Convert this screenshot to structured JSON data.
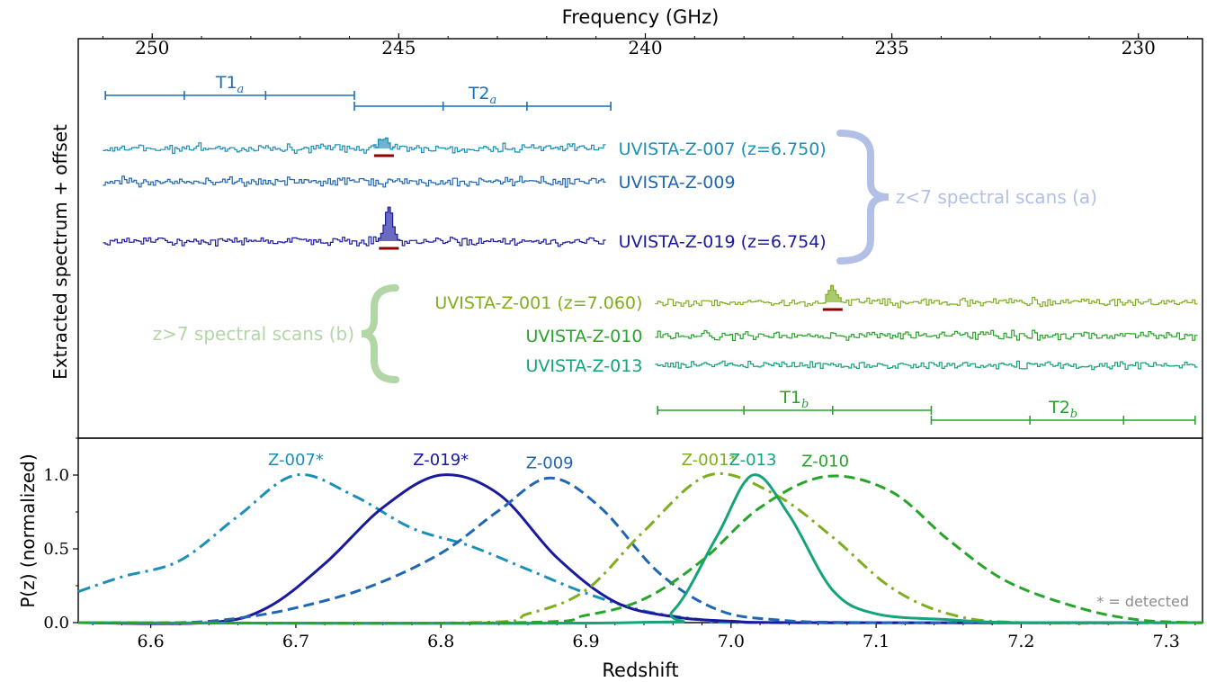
{
  "colors": {
    "z007": "#1c8fb8",
    "z009": "#1f66b3",
    "z019": "#1a1a9e",
    "z001": "#7fae1f",
    "z010": "#27a52a",
    "z013": "#14a37a",
    "brace_a": "#b3c0e6",
    "brace_b": "#b2d6a6",
    "line_marker": "#8b0000",
    "tuning_a": "#1f6fb8",
    "tuning_b": "#27a52a",
    "detected_note": "#8c8c8c"
  },
  "chart_data": [
    {
      "type": "line",
      "title": "",
      "top_axis_label": "Frequency (GHz)",
      "top_ticks": [
        "250",
        "245",
        "240",
        "235",
        "230"
      ],
      "ylabel": "Extracted spectrum + offset",
      "frequency_range_ghz": [
        251.5,
        228.7
      ],
      "tunings_a": {
        "T1": {
          "label_main": "T1",
          "label_sub": "a",
          "range_ghz": [
            250.95,
            245.9
          ],
          "ticks_ghz": [
            249.35,
            247.7
          ]
        },
        "T2": {
          "label_main": "T2",
          "label_sub": "a",
          "range_ghz": [
            245.9,
            240.7
          ],
          "ticks_ghz": [
            244.1,
            242.4
          ]
        }
      },
      "tunings_b": {
        "T1": {
          "label_main": "T1",
          "label_sub": "b",
          "range_ghz": [
            239.75,
            234.2
          ],
          "ticks_ghz": [
            238.0,
            236.2
          ]
        },
        "T2": {
          "label_main": "T2",
          "label_sub": "b",
          "range_ghz": [
            234.2,
            228.85
          ],
          "ticks_ghz": [
            232.2,
            230.3
          ]
        }
      },
      "series": [
        {
          "name": "UVISTA-Z-007 (z=6.750)",
          "color_key": "z007",
          "group": "a",
          "freq_range_ghz": [
            251.0,
            240.8
          ],
          "line_center_ghz": 245.3,
          "line_peak": 0.55
        },
        {
          "name": "UVISTA-Z-009",
          "color_key": "z009",
          "group": "a",
          "freq_range_ghz": [
            251.0,
            240.8
          ]
        },
        {
          "name": "UVISTA-Z-019 (z=6.754)",
          "color_key": "z019",
          "group": "a",
          "freq_range_ghz": [
            251.0,
            240.8
          ],
          "line_center_ghz": 245.2,
          "line_peak": 1.5
        },
        {
          "name": "UVISTA-Z-001 (z=7.060)",
          "color_key": "z001",
          "group": "b",
          "freq_range_ghz": [
            239.8,
            228.8
          ],
          "line_center_ghz": 236.2,
          "line_peak": 0.8
        },
        {
          "name": "UVISTA-Z-010",
          "color_key": "z010",
          "group": "b",
          "freq_range_ghz": [
            239.8,
            228.8
          ]
        },
        {
          "name": "UVISTA-Z-013",
          "color_key": "z013",
          "group": "b",
          "freq_range_ghz": [
            239.8,
            228.8
          ]
        }
      ],
      "groups": {
        "a": {
          "label": "z<7 spectral scans (a)"
        },
        "b": {
          "label": "z>7 spectral scans (b)"
        }
      }
    },
    {
      "type": "line",
      "title": "",
      "xlabel": "Redshift",
      "ylabel": "P(z) (normalized)",
      "xlim": [
        6.55,
        7.325
      ],
      "ylim": [
        0,
        1.25
      ],
      "x_ticks": [
        "6.6",
        "6.7",
        "6.8",
        "6.9",
        "7.0",
        "7.1",
        "7.2",
        "7.3"
      ],
      "y_ticks": [
        "0.0",
        "0.5",
        "1.0"
      ],
      "annotation": "* = detected",
      "series": [
        {
          "name": "Z-007*",
          "color_key": "z007",
          "style": "dashdot",
          "peak_z": 6.7,
          "peak": 1.0,
          "points": [
            [
              6.55,
              0.21
            ],
            [
              6.58,
              0.31
            ],
            [
              6.62,
              0.42
            ],
            [
              6.66,
              0.72
            ],
            [
              6.7,
              1.0
            ],
            [
              6.74,
              0.86
            ],
            [
              6.78,
              0.64
            ],
            [
              6.82,
              0.52
            ],
            [
              6.86,
              0.36
            ],
            [
              6.9,
              0.2
            ],
            [
              6.94,
              0.08
            ],
            [
              6.98,
              0.02
            ],
            [
              7.02,
              0.0
            ]
          ]
        },
        {
          "name": "Z-019*",
          "color_key": "z019",
          "style": "solid",
          "peak_z": 6.8,
          "peak": 1.0,
          "points": [
            [
              6.64,
              0.0
            ],
            [
              6.68,
              0.1
            ],
            [
              6.72,
              0.4
            ],
            [
              6.76,
              0.78
            ],
            [
              6.8,
              1.0
            ],
            [
              6.84,
              0.87
            ],
            [
              6.88,
              0.44
            ],
            [
              6.92,
              0.14
            ],
            [
              6.96,
              0.04
            ],
            [
              7.0,
              0.01
            ],
            [
              7.05,
              0.0
            ]
          ]
        },
        {
          "name": "Z-009",
          "color_key": "z009",
          "style": "dashed",
          "peak_z": 6.875,
          "peak": 0.98,
          "points": [
            [
              6.62,
              0.0
            ],
            [
              6.66,
              0.03
            ],
            [
              6.7,
              0.1
            ],
            [
              6.75,
              0.24
            ],
            [
              6.8,
              0.47
            ],
            [
              6.84,
              0.76
            ],
            [
              6.875,
              0.98
            ],
            [
              6.91,
              0.78
            ],
            [
              6.95,
              0.34
            ],
            [
              6.99,
              0.09
            ],
            [
              7.03,
              0.02
            ],
            [
              7.1,
              0.0
            ]
          ]
        },
        {
          "name": "Z-001*",
          "color_key": "z001",
          "style": "dashdot",
          "peak_z": 6.985,
          "peak": 1.0,
          "points": [
            [
              6.82,
              0.0
            ],
            [
              6.86,
              0.06
            ],
            [
              6.9,
              0.22
            ],
            [
              6.94,
              0.62
            ],
            [
              6.985,
              1.0
            ],
            [
              7.03,
              0.87
            ],
            [
              7.07,
              0.58
            ],
            [
              7.11,
              0.24
            ],
            [
              7.15,
              0.06
            ],
            [
              7.2,
              0.0
            ]
          ]
        },
        {
          "name": "Z-013",
          "color_key": "z013",
          "style": "solid",
          "peak_z": 7.015,
          "peak": 1.0,
          "points": [
            [
              6.93,
              0.0
            ],
            [
              6.96,
              0.08
            ],
            [
              6.99,
              0.58
            ],
            [
              7.015,
              1.0
            ],
            [
              7.04,
              0.73
            ],
            [
              7.07,
              0.22
            ],
            [
              7.1,
              0.06
            ],
            [
              7.15,
              0.02
            ],
            [
              7.2,
              0.0
            ]
          ]
        },
        {
          "name": "Z-010",
          "color_key": "z010",
          "style": "dashed",
          "peak_z": 7.065,
          "peak": 0.99,
          "points": [
            [
              6.85,
              0.0
            ],
            [
              6.9,
              0.05
            ],
            [
              6.94,
              0.16
            ],
            [
              6.98,
              0.42
            ],
            [
              7.02,
              0.78
            ],
            [
              7.065,
              0.99
            ],
            [
              7.11,
              0.89
            ],
            [
              7.15,
              0.56
            ],
            [
              7.19,
              0.28
            ],
            [
              7.24,
              0.1
            ],
            [
              7.28,
              0.02
            ],
            [
              7.32,
              0.0
            ]
          ]
        }
      ]
    }
  ]
}
